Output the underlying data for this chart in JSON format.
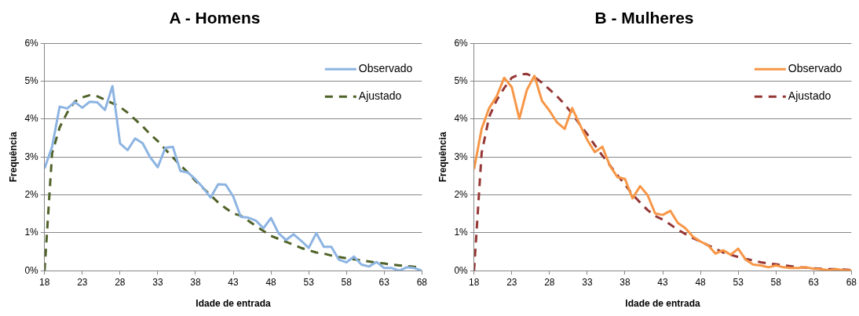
{
  "chart_data": [
    {
      "type": "line",
      "title": "A - Homens",
      "xlabel": "Idade de entrada",
      "ylabel": "Frequência",
      "x": [
        18,
        19,
        20,
        21,
        22,
        23,
        24,
        25,
        26,
        27,
        28,
        29,
        30,
        31,
        32,
        33,
        34,
        35,
        36,
        37,
        38,
        39,
        40,
        41,
        42,
        43,
        44,
        45,
        46,
        47,
        48,
        49,
        50,
        51,
        52,
        53,
        54,
        55,
        56,
        57,
        58,
        59,
        60,
        61,
        62,
        63,
        64,
        65,
        66,
        67,
        68
      ],
      "series": [
        {
          "name": "Observado",
          "color": "#8db4e2",
          "line_style": "solid",
          "values": [
            2.7,
            3.27,
            4.33,
            4.28,
            4.45,
            4.3,
            4.46,
            4.44,
            4.24,
            4.87,
            3.36,
            3.18,
            3.49,
            3.36,
            2.99,
            2.73,
            3.24,
            3.27,
            2.63,
            2.59,
            2.41,
            2.19,
            1.93,
            2.28,
            2.27,
            1.96,
            1.42,
            1.4,
            1.32,
            1.12,
            1.39,
            0.99,
            0.81,
            0.96,
            0.79,
            0.6,
            0.99,
            0.63,
            0.63,
            0.29,
            0.22,
            0.37,
            0.16,
            0.11,
            0.23,
            0.07,
            0.07,
            0.0,
            0.09,
            0.07,
            0.0
          ]
        },
        {
          "name": "Ajustado",
          "color": "#4f6228",
          "line_style": "dashed",
          "values": [
            0.0,
            3.1,
            3.78,
            4.17,
            4.46,
            4.57,
            4.63,
            4.6,
            4.51,
            4.42,
            4.32,
            4.17,
            3.99,
            3.81,
            3.6,
            3.42,
            3.2,
            2.99,
            2.78,
            2.59,
            2.37,
            2.18,
            1.99,
            1.8,
            1.65,
            1.51,
            1.45,
            1.32,
            1.18,
            1.05,
            0.92,
            0.84,
            0.76,
            0.68,
            0.6,
            0.54,
            0.48,
            0.45,
            0.4,
            0.36,
            0.33,
            0.3,
            0.27,
            0.24,
            0.21,
            0.19,
            0.16,
            0.14,
            0.12,
            0.1,
            0.08
          ]
        }
      ],
      "xlim": [
        18,
        68
      ],
      "xticks": [
        18,
        23,
        28,
        33,
        38,
        43,
        48,
        53,
        58,
        63,
        68
      ],
      "ylim": [
        0,
        6
      ],
      "yticks": [
        {
          "value": 0,
          "label": "0%"
        },
        {
          "value": 1,
          "label": "1%"
        },
        {
          "value": 2,
          "label": "2%"
        },
        {
          "value": 3,
          "label": "3%"
        },
        {
          "value": 4,
          "label": "4%"
        },
        {
          "value": 5,
          "label": "5%"
        },
        {
          "value": 6,
          "label": "6%"
        }
      ],
      "grid": "y",
      "legend": "top right",
      "marker": "none"
    },
    {
      "type": "line",
      "title": "B - Mulheres",
      "xlabel": "Idade de entrada",
      "ylabel": "Frequência",
      "x": [
        18,
        19,
        20,
        21,
        22,
        23,
        24,
        25,
        26,
        27,
        28,
        29,
        30,
        31,
        32,
        33,
        34,
        35,
        36,
        37,
        38,
        39,
        40,
        41,
        42,
        43,
        44,
        45,
        46,
        47,
        48,
        49,
        50,
        51,
        52,
        53,
        54,
        55,
        56,
        57,
        58,
        59,
        60,
        61,
        62,
        63,
        64,
        65,
        66,
        67,
        68
      ],
      "series": [
        {
          "name": "Observado",
          "color": "#f79646",
          "line_style": "solid",
          "values": [
            2.68,
            3.74,
            4.29,
            4.6,
            5.09,
            4.84,
            4.01,
            4.77,
            5.14,
            4.48,
            4.22,
            3.91,
            3.74,
            4.29,
            3.86,
            3.45,
            3.13,
            3.27,
            2.77,
            2.47,
            2.42,
            1.91,
            2.23,
            1.99,
            1.51,
            1.47,
            1.58,
            1.26,
            1.12,
            0.9,
            0.77,
            0.67,
            0.45,
            0.54,
            0.42,
            0.58,
            0.29,
            0.16,
            0.14,
            0.09,
            0.14,
            0.09,
            0.07,
            0.07,
            0.09,
            0.05,
            0.04,
            0.01,
            0.04,
            0.01,
            0.01
          ]
        },
        {
          "name": "Ajustado",
          "color": "#953735",
          "line_style": "dashed",
          "values": [
            0.0,
            3.1,
            4.06,
            4.5,
            4.82,
            5.09,
            5.18,
            5.19,
            5.11,
            4.96,
            4.78,
            4.6,
            4.39,
            4.14,
            3.86,
            3.6,
            3.31,
            3.04,
            2.78,
            2.52,
            2.27,
            2.01,
            1.8,
            1.6,
            1.44,
            1.35,
            1.22,
            1.08,
            0.97,
            0.86,
            0.77,
            0.67,
            0.58,
            0.48,
            0.42,
            0.36,
            0.31,
            0.27,
            0.22,
            0.19,
            0.17,
            0.14,
            0.12,
            0.09,
            0.08,
            0.06,
            0.05,
            0.04,
            0.04,
            0.03,
            0.02
          ]
        }
      ],
      "xlim": [
        18,
        68
      ],
      "xticks": [
        18,
        23,
        28,
        33,
        38,
        43,
        48,
        53,
        58,
        63,
        68
      ],
      "ylim": [
        0,
        6
      ],
      "yticks": [
        {
          "value": 0,
          "label": "0%"
        },
        {
          "value": 1,
          "label": "1%"
        },
        {
          "value": 2,
          "label": "2%"
        },
        {
          "value": 3,
          "label": "3%"
        },
        {
          "value": 4,
          "label": "4%"
        },
        {
          "value": 5,
          "label": "5%"
        },
        {
          "value": 6,
          "label": "6%"
        }
      ],
      "grid": "y",
      "legend": "top right",
      "marker": "none"
    }
  ]
}
